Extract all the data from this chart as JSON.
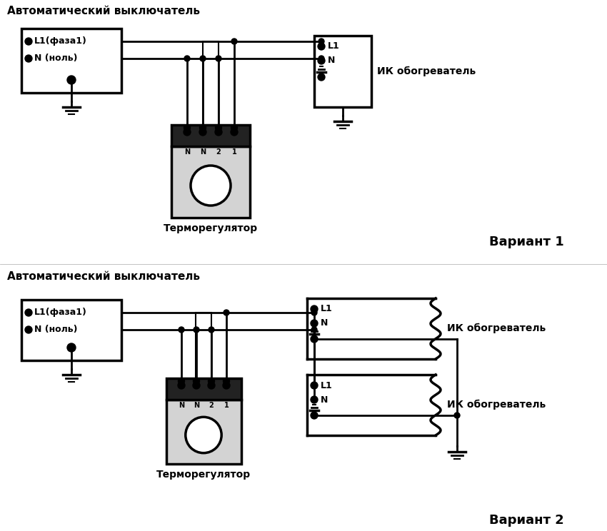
{
  "bg_color": "#ffffff",
  "title1": "Автоматический выключатель",
  "title2": "Автоматический выключатель",
  "variant1": "Вариант 1",
  "variant2": "Вариант 2",
  "thermostat_label": "Терморегулятор",
  "heater_label": "ИК обогреватель",
  "label_L1": "L1",
  "label_N": "N",
  "label_L1faza": "L1(фаза1)",
  "label_Nnol": "N (ноль)",
  "terminal_labels": [
    "N",
    "N",
    "2",
    "1"
  ],
  "line_color": "#000000",
  "fill_color": "#d3d3d3",
  "term_block_color": "#222222"
}
